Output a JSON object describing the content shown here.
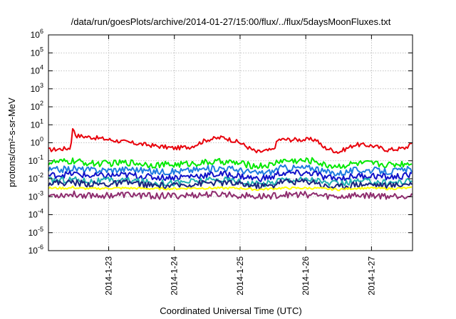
{
  "chart_data": {
    "type": "line",
    "title": "/data/run/goesPlots/archive/2014-01-27/15:00/flux/../flux/5daysMoonFluxes.txt",
    "xlabel": "Coordinated Universal Time (UTC)",
    "ylabel": "protons/cm²-s-sr-MeV",
    "yscale": "log",
    "ylim": [
      1e-06,
      1000000.0
    ],
    "y_ticks": [
      {
        "base": "10",
        "exp": "-6",
        "value": 1e-06
      },
      {
        "base": "10",
        "exp": "-5",
        "value": 1e-05
      },
      {
        "base": "10",
        "exp": "-4",
        "value": 0.0001
      },
      {
        "base": "10",
        "exp": "-3",
        "value": 0.001
      },
      {
        "base": "10",
        "exp": "-2",
        "value": 0.01
      },
      {
        "base": "10",
        "exp": "-1",
        "value": 0.1
      },
      {
        "base": "10",
        "exp": "0",
        "value": 1
      },
      {
        "base": "10",
        "exp": "1",
        "value": 10
      },
      {
        "base": "10",
        "exp": "2",
        "value": 100
      },
      {
        "base": "10",
        "exp": "3",
        "value": 1000
      },
      {
        "base": "10",
        "exp": "4",
        "value": 10000
      },
      {
        "base": "10",
        "exp": "5",
        "value": 100000
      },
      {
        "base": "10",
        "exp": "6",
        "value": 1000000
      }
    ],
    "xlim": [
      "2014-01-22T02:00",
      "2014-01-27T15:00"
    ],
    "x_ticks": [
      {
        "label": "2014-1-23",
        "value": "2014-01-23T00:00"
      },
      {
        "label": "2014-1-24",
        "value": "2014-01-24T00:00"
      },
      {
        "label": "2014-1-25",
        "value": "2014-01-25T00:00"
      },
      {
        "label": "2014-1-26",
        "value": "2014-01-26T00:00"
      },
      {
        "label": "2014-1-27",
        "value": "2014-01-27T00:00"
      }
    ],
    "grid": true,
    "legend": "none",
    "x_anchors": [
      "2014-01-22T02:00",
      "2014-01-22T10:00",
      "2014-01-22T11:00",
      "2014-01-22T12:00",
      "2014-01-22T18:00",
      "2014-01-23T00:00",
      "2014-01-23T08:00",
      "2014-01-23T16:00",
      "2014-01-24T00:00",
      "2014-01-24T06:00",
      "2014-01-24T12:00",
      "2014-01-24T18:00",
      "2014-01-25T00:00",
      "2014-01-25T06:00",
      "2014-01-25T12:00",
      "2014-01-25T14:00",
      "2014-01-26T04:00",
      "2014-01-26T06:00",
      "2014-01-26T12:00",
      "2014-01-26T18:00",
      "2014-01-27T00:00",
      "2014-01-27T06:00",
      "2014-01-27T12:00",
      "2014-01-27T15:00"
    ],
    "series": [
      {
        "color": "#e8000b",
        "values": [
          0.4,
          0.5,
          8,
          2.5,
          2.0,
          1.5,
          1.0,
          0.7,
          0.5,
          0.6,
          1.5,
          2.0,
          1.0,
          0.3,
          0.4,
          1.5,
          1.5,
          0.6,
          0.3,
          0.8,
          0.7,
          0.4,
          0.5,
          0.9
        ]
      },
      {
        "color": "#00e800",
        "values": [
          0.08,
          0.09,
          0.1,
          0.09,
          0.07,
          0.07,
          0.08,
          0.06,
          0.06,
          0.07,
          0.08,
          0.09,
          0.07,
          0.05,
          0.06,
          0.1,
          0.1,
          0.06,
          0.05,
          0.07,
          0.07,
          0.06,
          0.07,
          0.08
        ]
      },
      {
        "color": "#1e7be0",
        "values": [
          0.03,
          0.035,
          0.04,
          0.035,
          0.03,
          0.03,
          0.035,
          0.025,
          0.025,
          0.03,
          0.035,
          0.04,
          0.03,
          0.02,
          0.025,
          0.04,
          0.04,
          0.025,
          0.02,
          0.03,
          0.03,
          0.025,
          0.03,
          0.035
        ]
      },
      {
        "color": "#1010c8",
        "values": [
          0.015,
          0.018,
          0.02,
          0.018,
          0.014,
          0.015,
          0.016,
          0.012,
          0.012,
          0.014,
          0.016,
          0.018,
          0.014,
          0.01,
          0.012,
          0.02,
          0.02,
          0.012,
          0.01,
          0.014,
          0.015,
          0.012,
          0.014,
          0.016
        ]
      },
      {
        "color": "#20b0b0",
        "values": [
          0.008,
          0.009,
          0.01,
          0.009,
          0.007,
          0.008,
          0.008,
          0.006,
          0.006,
          0.007,
          0.008,
          0.009,
          0.007,
          0.005,
          0.006,
          0.009,
          0.009,
          0.006,
          0.005,
          0.007,
          0.007,
          0.006,
          0.007,
          0.008
        ]
      },
      {
        "color": "#1a237e",
        "values": [
          0.006,
          0.006,
          0.007,
          0.006,
          0.005,
          0.005,
          0.006,
          0.004,
          0.004,
          0.005,
          0.006,
          0.006,
          0.005,
          0.004,
          0.004,
          0.007,
          0.007,
          0.004,
          0.0035,
          0.005,
          0.005,
          0.004,
          0.005,
          0.006
        ]
      },
      {
        "color": "#ffff00",
        "values": [
          0.003,
          0.003,
          0.0035,
          0.003,
          0.0028,
          0.003,
          0.003,
          0.0028,
          0.0028,
          0.003,
          0.003,
          0.003,
          0.003,
          0.0025,
          0.0028,
          0.003,
          0.003,
          0.0028,
          0.0025,
          0.003,
          0.003,
          0.0028,
          0.003,
          0.003
        ]
      },
      {
        "color": "#8e2c6e",
        "values": [
          0.0012,
          0.0013,
          0.0014,
          0.0013,
          0.0012,
          0.0012,
          0.0013,
          0.0011,
          0.0011,
          0.0012,
          0.0013,
          0.0014,
          0.0012,
          0.001,
          0.0011,
          0.0013,
          0.0013,
          0.0011,
          0.001,
          0.0012,
          0.0012,
          0.0011,
          0.0012,
          0.0013
        ]
      }
    ]
  }
}
